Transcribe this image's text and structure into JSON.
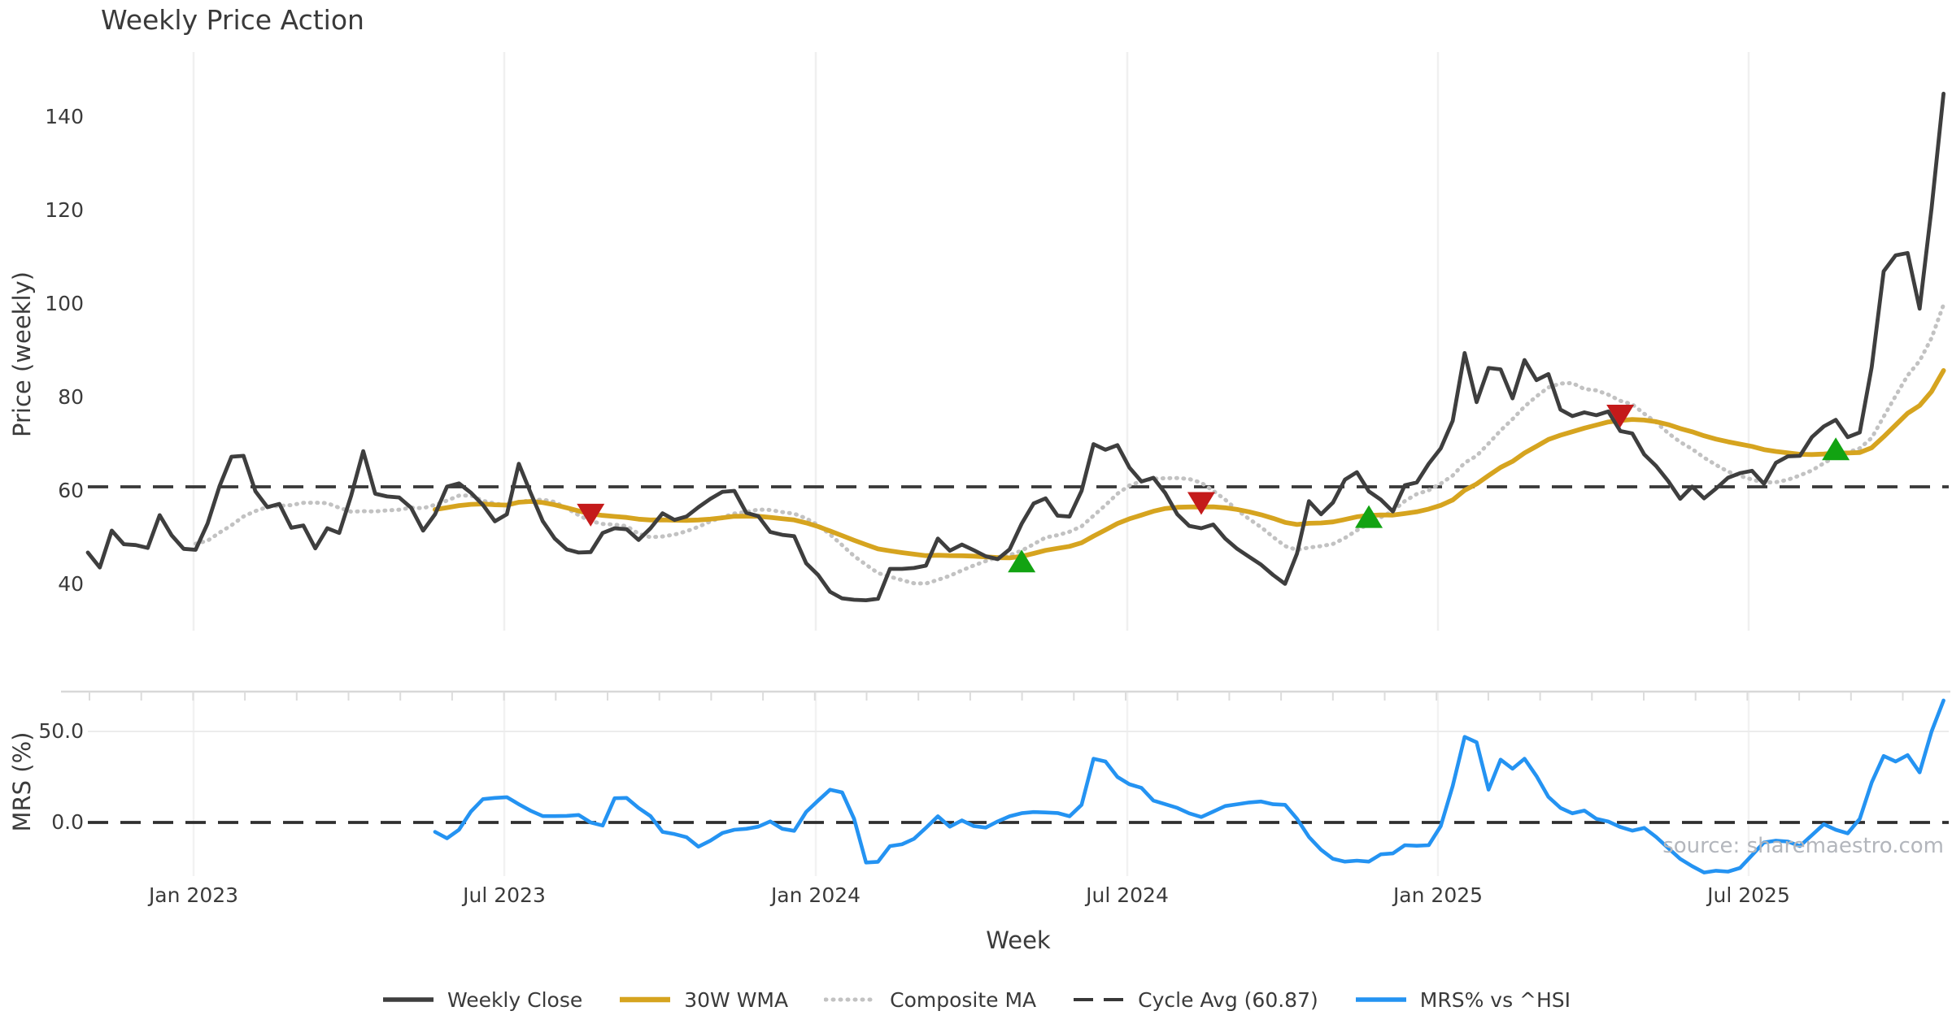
{
  "title": "Weekly Price Action",
  "source_note": "source: sharemaestro.com",
  "legend": {
    "items": [
      {
        "label": "Weekly Close",
        "color": "#3e3e3e",
        "style": "solid"
      },
      {
        "label": "30W WMA",
        "color": "#d6a41f",
        "style": "solid"
      },
      {
        "label": "Composite MA",
        "color": "#c2c2c2",
        "style": "dotted"
      },
      {
        "label": "Cycle Avg (60.87)",
        "color": "#383838",
        "style": "dashed"
      },
      {
        "label": "MRS% vs ^HSI",
        "color": "#2493f2",
        "style": "solid"
      }
    ]
  },
  "chart_data": {
    "type": "line",
    "title": "Weekly Price Action",
    "x_label": "Week",
    "x_unit": "weekly, starting Nov 2022, ending Oct 2025",
    "x_tick_labels": [
      "Jan 2023",
      "Jul 2023",
      "Jan 2024",
      "Jul 2024",
      "Jan 2025",
      "Jul 2025"
    ],
    "grid": "vertical-only, light gray",
    "legend_position": "bottom-center",
    "panels": [
      {
        "name": "price",
        "ylabel": "Price (weekly)",
        "ytick_labels": [
          "40",
          "60",
          "80",
          "100",
          "120",
          "140"
        ],
        "ytick_values": [
          40,
          60,
          80,
          100,
          120,
          140
        ],
        "ylim": [
          30.5,
          153.8
        ],
        "cycle_avg_value": 60.87,
        "series": [
          {
            "name": "Weekly Close",
            "style": "solid",
            "color": "#3e3e3e",
            "start_week": 0,
            "values": [
              46.8,
              43.6,
              51.5,
              48.6,
              48.4,
              47.8,
              54.8,
              50.5,
              47.6,
              47.4,
              53.0,
              61.0,
              67.3,
              67.5,
              59.9,
              56.5,
              57.2,
              52.1,
              52.6,
              47.7,
              52.0,
              51.0,
              59.0,
              68.5,
              59.4,
              58.8,
              58.6,
              56.4,
              51.5,
              55.0,
              60.9,
              61.6,
              59.6,
              57.0,
              53.5,
              55.0,
              65.8,
              59.5,
              53.5,
              49.8,
              47.5,
              46.8,
              46.9,
              51.0,
              52.0,
              51.8,
              49.5,
              52.0,
              55.2,
              53.8,
              54.5,
              56.5,
              58.3,
              59.8,
              60.0,
              55.3,
              54.6,
              51.2,
              50.6,
              50.3,
              44.5,
              42.0,
              38.4,
              37.0,
              36.7,
              36.6,
              36.9,
              43.3,
              43.3,
              43.5,
              44.0,
              49.8,
              47.2,
              48.5,
              47.3,
              46.0,
              45.4,
              47.5,
              53.0,
              57.3,
              58.4,
              54.7,
              54.5,
              60.0,
              70.0,
              68.8,
              69.8,
              65.0,
              62.0,
              62.8,
              59.5,
              55.0,
              52.5,
              52.0,
              52.8,
              49.8,
              47.6,
              45.9,
              44.2,
              42.0,
              40.1,
              46.6,
              57.8,
              55.0,
              57.5,
              62.4,
              64.0,
              59.9,
              58.1,
              55.6,
              61.2,
              61.8,
              65.8,
              69.1,
              75.0,
              89.5,
              79.0,
              86.3,
              86.0,
              79.8,
              88.0,
              83.7,
              85.0,
              77.4,
              76.0,
              76.8,
              76.2,
              77.0,
              72.8,
              72.3,
              67.8,
              65.3,
              62.1,
              58.3,
              60.9,
              58.4,
              60.5,
              62.8,
              63.8,
              64.3,
              61.5,
              66.0,
              67.4,
              67.5,
              71.5,
              73.8,
              75.2,
              71.5,
              72.5,
              86.5,
              107.0,
              110.4,
              110.9,
              99.0,
              120.5,
              145.0
            ]
          },
          {
            "name": "30W WMA",
            "style": "solid",
            "color": "#d6a41f",
            "start_week": 29,
            "derived_from": "Weekly Close",
            "method": "linear-weighted moving average, 30 weeks"
          },
          {
            "name": "Composite MA",
            "style": "dotted",
            "color": "#c2c2c2",
            "start_week": 9,
            "derived_from": "Weekly Close",
            "method": "simple moving average, 10 weeks"
          },
          {
            "name": "Cycle Avg",
            "style": "dashed",
            "color": "#383838",
            "type": "hline",
            "value": 60.87
          }
        ],
        "signals": {
          "sell_color": "#c41a1a",
          "buy_color": "#12a312",
          "sell": [
            {
              "week": 42,
              "y": 54.8
            },
            {
              "week": 93,
              "y": 57.3
            },
            {
              "week": 128,
              "y": 76.0
            }
          ],
          "buy": [
            {
              "week": 78,
              "y": 45.0
            },
            {
              "week": 107,
              "y": 54.5
            },
            {
              "week": 146,
              "y": 69.0
            }
          ]
        }
      },
      {
        "name": "mrs",
        "ylabel": "MRS (%)",
        "ytick_labels": [
          "0.0",
          "50.0"
        ],
        "ytick_values": [
          0,
          50
        ],
        "ylim": [
          -29.5,
          71.9
        ],
        "zero_line": {
          "style": "dashed",
          "color": "#2f2f2f",
          "value": 0
        },
        "series": [
          {
            "name": "MRS% vs ^HSI",
            "style": "solid",
            "color": "#2493f2",
            "start_week": 29,
            "values": [
              -5.2,
              -8.7,
              -4.0,
              6.0,
              12.8,
              13.5,
              13.9,
              10.0,
              6.4,
              3.5,
              3.5,
              3.6,
              4.1,
              0.0,
              -1.7,
              13.3,
              13.5,
              8.0,
              3.5,
              -5.2,
              -6.4,
              -8.1,
              -13.3,
              -10.0,
              -5.8,
              -4.0,
              -3.5,
              -2.3,
              0.6,
              -3.5,
              -4.6,
              5.8,
              12.0,
              18.0,
              16.5,
              2.0,
              -22.0,
              -21.6,
              -13.0,
              -12.0,
              -9.0,
              -3.0,
              3.4,
              -2.3,
              1.1,
              -2.0,
              -2.8,
              0.6,
              3.4,
              5.1,
              5.7,
              5.5,
              5.2,
              3.4,
              9.7,
              35.0,
              33.5,
              25.0,
              21.0,
              19.0,
              12.0,
              10.0,
              8.0,
              5.0,
              3.0,
              6.0,
              9.0,
              10.0,
              11.0,
              11.5,
              10.0,
              9.7,
              2.0,
              -8.0,
              -15.0,
              -20.0,
              -21.5,
              -21.0,
              -21.5,
              -17.5,
              -17.0,
              -12.5,
              -12.8,
              -12.5,
              -2.0,
              20.0,
              47.0,
              44.0,
              18.0,
              34.5,
              29.5,
              35.0,
              25.5,
              14.0,
              8.0,
              5.0,
              6.5,
              2.0,
              0.5,
              -2.5,
              -4.5,
              -3.0,
              -8.0,
              -14.0,
              -20.0,
              -24.0,
              -27.5,
              -26.5,
              -27.0,
              -25.0,
              -18.0,
              -11.0,
              -10.0,
              -10.5,
              -13.0,
              -7.0,
              -1.0,
              -4.0,
              -6.0,
              2.0,
              22.0,
              36.5,
              33.5,
              37.0,
              27.5,
              50.0,
              67.0
            ]
          }
        ]
      }
    ]
  }
}
